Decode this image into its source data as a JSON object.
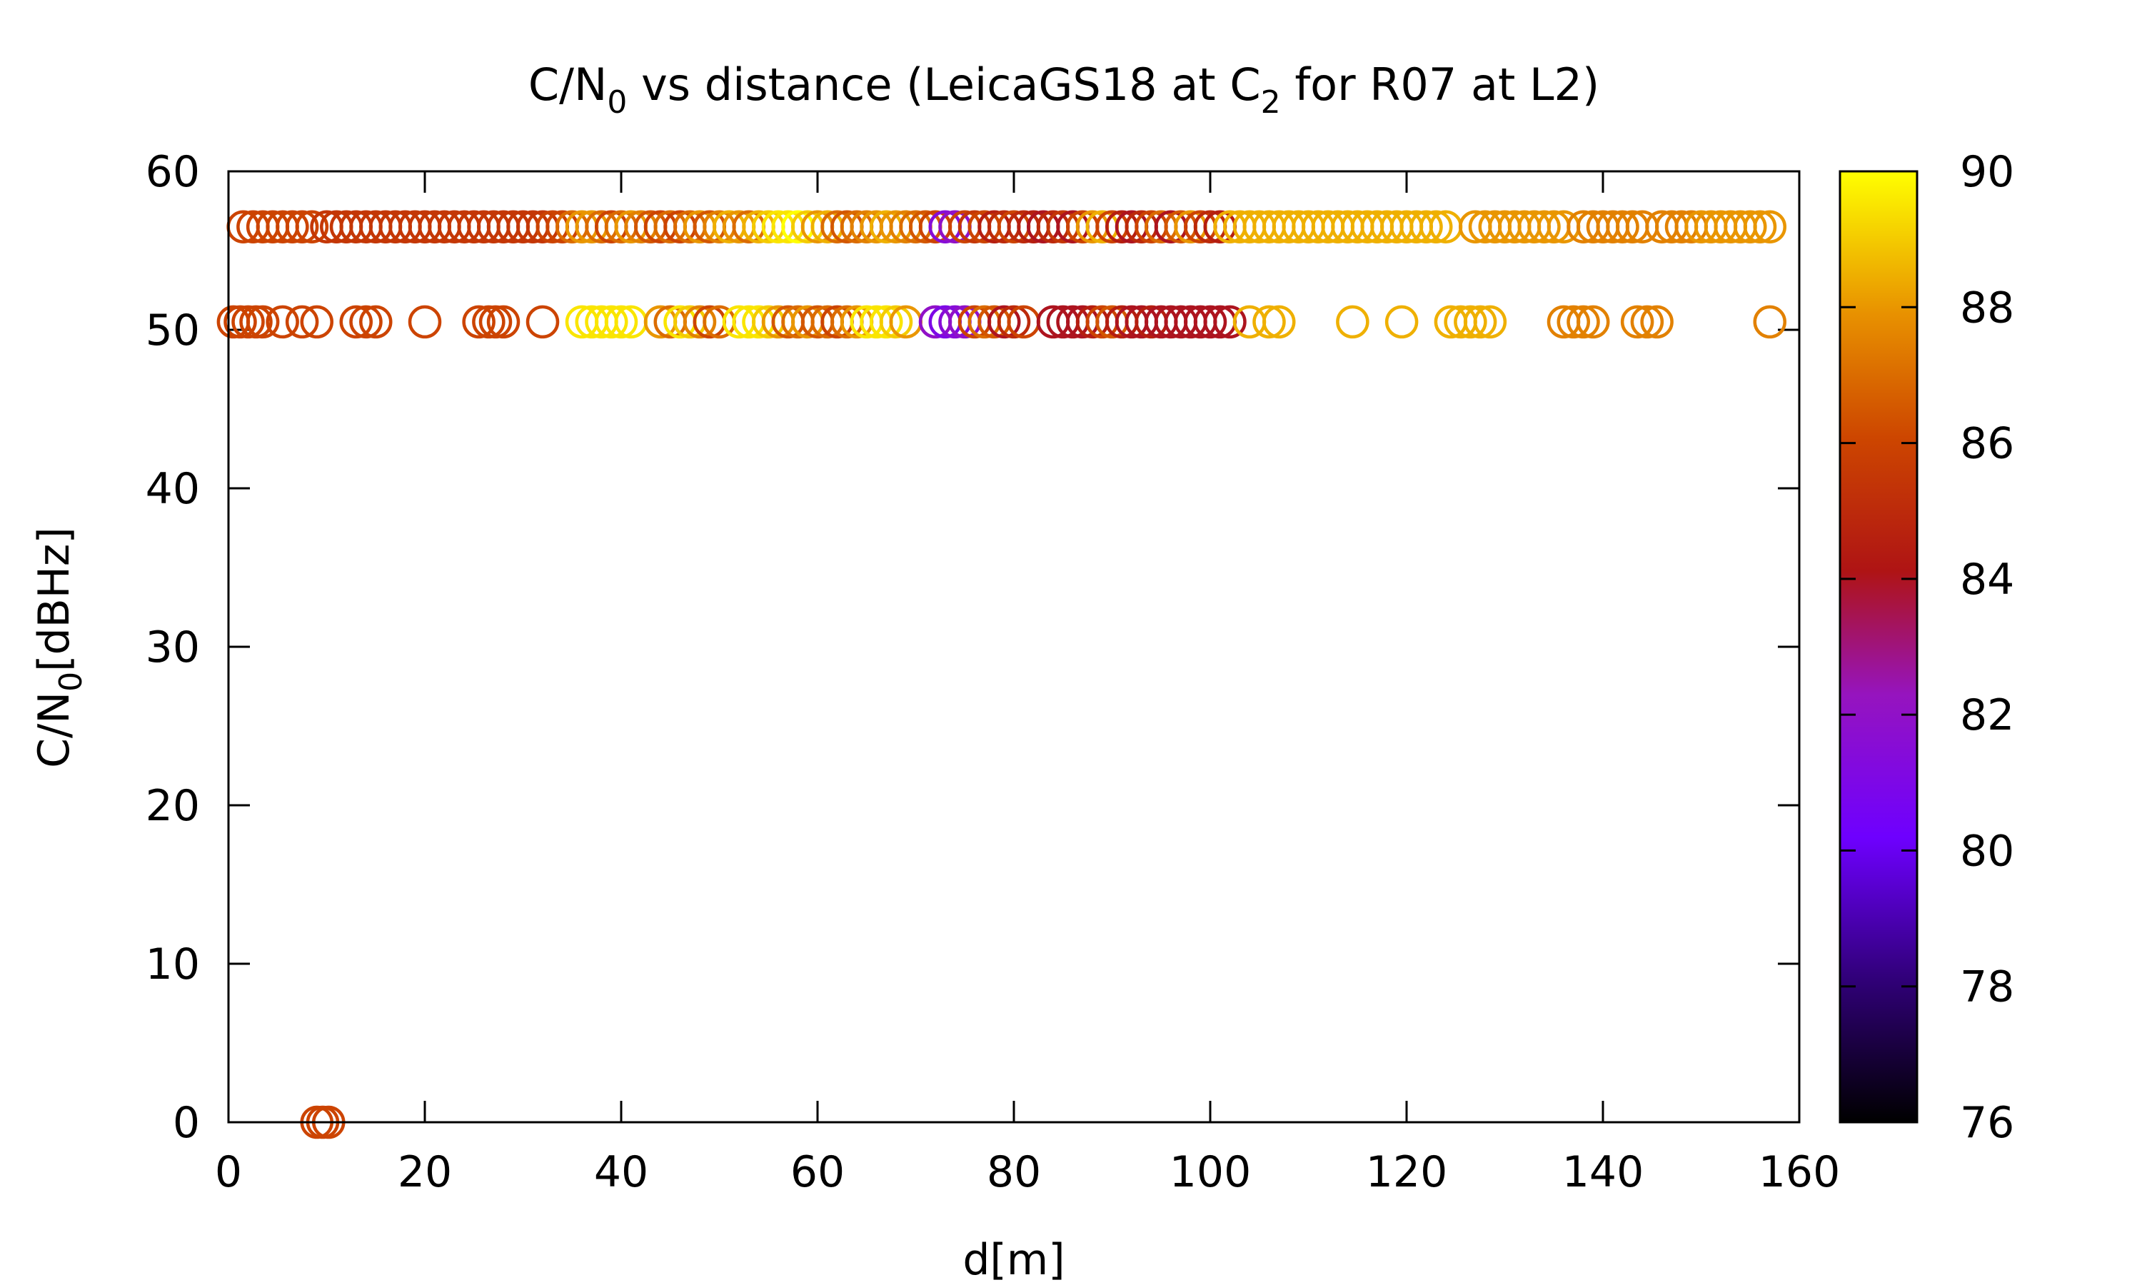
{
  "chart_data": {
    "type": "scatter",
    "title": "C/N0 vs distance (LeicaGS18 at C2 for R07 at L2)",
    "title_parts": {
      "pre": "C/N",
      "sub1": "0",
      "mid": " vs distance (LeicaGS18 at C",
      "sub2": "2",
      "post": " for R07 at L2)"
    },
    "xlabel": "d[m]",
    "ylabel_parts": {
      "pre": "C/N",
      "sub": "0",
      "post": "[dBHz]"
    },
    "xlim": [
      0,
      160
    ],
    "ylim": [
      0,
      60
    ],
    "x_ticks": [
      "0",
      "20",
      "40",
      "60",
      "80",
      "100",
      "120",
      "140",
      "160"
    ],
    "y_ticks": [
      "0",
      "10",
      "20",
      "30",
      "40",
      "50",
      "60"
    ],
    "colorbar": {
      "range": [
        76,
        90
      ],
      "ticks": [
        "76",
        "78",
        "80",
        "82",
        "84",
        "86",
        "88",
        "90"
      ],
      "palette": "black-purple-red-orange-yellow"
    },
    "marker": "open-circle",
    "grid": false,
    "series": [
      {
        "y": 56.5,
        "points": [
          [
            1.5,
            86
          ],
          [
            2.5,
            86
          ],
          [
            3.5,
            86
          ],
          [
            4.5,
            86
          ],
          [
            5.5,
            86
          ],
          [
            6.5,
            86
          ],
          [
            7.5,
            86
          ],
          [
            8.5,
            86
          ],
          [
            10,
            85.5
          ],
          [
            11,
            85.5
          ],
          [
            12,
            85.5
          ],
          [
            13,
            85.5
          ],
          [
            14,
            85.5
          ],
          [
            15,
            85.5
          ],
          [
            16,
            85.5
          ],
          [
            17,
            85.5
          ],
          [
            18,
            85.5
          ],
          [
            19,
            85.5
          ],
          [
            20,
            85.5
          ],
          [
            21,
            85.5
          ],
          [
            22,
            85.5
          ],
          [
            23,
            85.5
          ],
          [
            24,
            85.5
          ],
          [
            25,
            85.5
          ],
          [
            26,
            85.5
          ],
          [
            27,
            85.5
          ],
          [
            28,
            85.5
          ],
          [
            29,
            85.5
          ],
          [
            30,
            85.5
          ],
          [
            31,
            85.5
          ],
          [
            32,
            85.5
          ],
          [
            33,
            86
          ],
          [
            34,
            86
          ],
          [
            35,
            87
          ],
          [
            36,
            88
          ],
          [
            37,
            88
          ],
          [
            38,
            87
          ],
          [
            39,
            86
          ],
          [
            40,
            87
          ],
          [
            41,
            88
          ],
          [
            42,
            87.5
          ],
          [
            43,
            86.5
          ],
          [
            44,
            86
          ],
          [
            45,
            87
          ],
          [
            46,
            86
          ],
          [
            47,
            87
          ],
          [
            48,
            88
          ],
          [
            49,
            86.5
          ],
          [
            50,
            87.5
          ],
          [
            51,
            88.5
          ],
          [
            52,
            88
          ],
          [
            53,
            87
          ],
          [
            54,
            88.5
          ],
          [
            55,
            89
          ],
          [
            56,
            89.5
          ],
          [
            57,
            89.5
          ],
          [
            58,
            90
          ],
          [
            59,
            89
          ],
          [
            60,
            88
          ],
          [
            61,
            88.5
          ],
          [
            62,
            87
          ],
          [
            63,
            86.5
          ],
          [
            64,
            87
          ],
          [
            65,
            87.5
          ],
          [
            66,
            88
          ],
          [
            67,
            88.5
          ],
          [
            68,
            88
          ],
          [
            69,
            87.5
          ],
          [
            70,
            87
          ],
          [
            71,
            86.5
          ],
          [
            72,
            86
          ],
          [
            73,
            81.5
          ],
          [
            74,
            82
          ],
          [
            75,
            86
          ],
          [
            76,
            85.5
          ],
          [
            77,
            86
          ],
          [
            78,
            84.5
          ],
          [
            79,
            85
          ],
          [
            80,
            86
          ],
          [
            81,
            85
          ],
          [
            82,
            84.5
          ],
          [
            83,
            84
          ],
          [
            84,
            85
          ],
          [
            85,
            85.5
          ],
          [
            86,
            84
          ],
          [
            87,
            86
          ],
          [
            88,
            88
          ],
          [
            89,
            88.5
          ],
          [
            90,
            86
          ],
          [
            91,
            84.5
          ],
          [
            92,
            84
          ],
          [
            93,
            85
          ],
          [
            94,
            86
          ],
          [
            95,
            87
          ],
          [
            96,
            84
          ],
          [
            97,
            86.5
          ],
          [
            98,
            88
          ],
          [
            99,
            86
          ],
          [
            100,
            85
          ],
          [
            101,
            84.5
          ],
          [
            102,
            88.5
          ],
          [
            103,
            88.5
          ],
          [
            104,
            88.5
          ],
          [
            105,
            88.5
          ],
          [
            106,
            88.5
          ],
          [
            107,
            88.5
          ],
          [
            108,
            88.5
          ],
          [
            109,
            88.5
          ],
          [
            110,
            88.5
          ],
          [
            111,
            88.5
          ],
          [
            112,
            88.5
          ],
          [
            113,
            88.5
          ],
          [
            114,
            88.5
          ],
          [
            115,
            88.5
          ],
          [
            116,
            88.5
          ],
          [
            117,
            88.5
          ],
          [
            118,
            88.5
          ],
          [
            119,
            88.5
          ],
          [
            120,
            88.5
          ],
          [
            121,
            88.5
          ],
          [
            122,
            88.5
          ],
          [
            123,
            88.5
          ],
          [
            124,
            88.5
          ],
          [
            127,
            88
          ],
          [
            128,
            88
          ],
          [
            129,
            88
          ],
          [
            130,
            88
          ],
          [
            131,
            88
          ],
          [
            132,
            88
          ],
          [
            133,
            88
          ],
          [
            134,
            88
          ],
          [
            135,
            88
          ],
          [
            136,
            88
          ],
          [
            138,
            87.5
          ],
          [
            139,
            87.5
          ],
          [
            140,
            87.5
          ],
          [
            141,
            87.5
          ],
          [
            142,
            87.5
          ],
          [
            143,
            87.5
          ],
          [
            144,
            87.5
          ],
          [
            146,
            87.5
          ],
          [
            147,
            87.5
          ],
          [
            148,
            87.5
          ],
          [
            149,
            87.5
          ],
          [
            150,
            88
          ],
          [
            151,
            88
          ],
          [
            152,
            88
          ],
          [
            153,
            88
          ],
          [
            154,
            88
          ],
          [
            155,
            88
          ],
          [
            156,
            88
          ],
          [
            157,
            88
          ]
        ]
      },
      {
        "y": 50.5,
        "points": [
          [
            0.5,
            86
          ],
          [
            1.2,
            86
          ],
          [
            2,
            86
          ],
          [
            2.8,
            86
          ],
          [
            3.5,
            86
          ],
          [
            5.5,
            86
          ],
          [
            7.5,
            86
          ],
          [
            9,
            86
          ],
          [
            13,
            86
          ],
          [
            14,
            86
          ],
          [
            15,
            86
          ],
          [
            20,
            86
          ],
          [
            25.5,
            86
          ],
          [
            26.5,
            86
          ],
          [
            27.2,
            86
          ],
          [
            28,
            86
          ],
          [
            32,
            86
          ],
          [
            36,
            89.5
          ],
          [
            37,
            89.5
          ],
          [
            38,
            89.5
          ],
          [
            39,
            89.5
          ],
          [
            40,
            89.5
          ],
          [
            41,
            89.5
          ],
          [
            44,
            88
          ],
          [
            45,
            87
          ],
          [
            46,
            89.5
          ],
          [
            47,
            89
          ],
          [
            48,
            87.5
          ],
          [
            49,
            86
          ],
          [
            50,
            87
          ],
          [
            52,
            89.5
          ],
          [
            53,
            89.5
          ],
          [
            54,
            89.5
          ],
          [
            55,
            89
          ],
          [
            56,
            88
          ],
          [
            57,
            86.5
          ],
          [
            58,
            87
          ],
          [
            59,
            88
          ],
          [
            60,
            86.5
          ],
          [
            61,
            87
          ],
          [
            62,
            86
          ],
          [
            63,
            87
          ],
          [
            64,
            88
          ],
          [
            65,
            89.5
          ],
          [
            66,
            89.5
          ],
          [
            67,
            89.5
          ],
          [
            68,
            89
          ],
          [
            69,
            88
          ],
          [
            72,
            82
          ],
          [
            73,
            81
          ],
          [
            74,
            81.5
          ],
          [
            75,
            82
          ],
          [
            76,
            86
          ],
          [
            77,
            87
          ],
          [
            78,
            86.5
          ],
          [
            79,
            84
          ],
          [
            80,
            85
          ],
          [
            81,
            86
          ],
          [
            84,
            84
          ],
          [
            85,
            84
          ],
          [
            86,
            84
          ],
          [
            87,
            84
          ],
          [
            88,
            84.5
          ],
          [
            89,
            86
          ],
          [
            90,
            86.5
          ],
          [
            91,
            84.5
          ],
          [
            92,
            84
          ],
          [
            93,
            84
          ],
          [
            94,
            84.5
          ],
          [
            95,
            84
          ],
          [
            96,
            84
          ],
          [
            97,
            84
          ],
          [
            98,
            84
          ],
          [
            99,
            84
          ],
          [
            100,
            84
          ],
          [
            101,
            84
          ],
          [
            102,
            84
          ],
          [
            104,
            88.5
          ],
          [
            106,
            88.5
          ],
          [
            107,
            88.5
          ],
          [
            114.5,
            88.5
          ],
          [
            119.5,
            88.5
          ],
          [
            124.5,
            88.5
          ],
          [
            125.5,
            88.5
          ],
          [
            126.5,
            88.5
          ],
          [
            127.5,
            88.5
          ],
          [
            128.5,
            88.5
          ],
          [
            136,
            87.5
          ],
          [
            137,
            87.5
          ],
          [
            138,
            87.5
          ],
          [
            139,
            87.5
          ],
          [
            143.5,
            87.5
          ],
          [
            144.5,
            87.5
          ],
          [
            145.5,
            87.5
          ],
          [
            157,
            87.5
          ]
        ]
      },
      {
        "y": 0,
        "points": [
          [
            9,
            86
          ],
          [
            9.6,
            86
          ],
          [
            10.2,
            86
          ]
        ]
      }
    ]
  }
}
